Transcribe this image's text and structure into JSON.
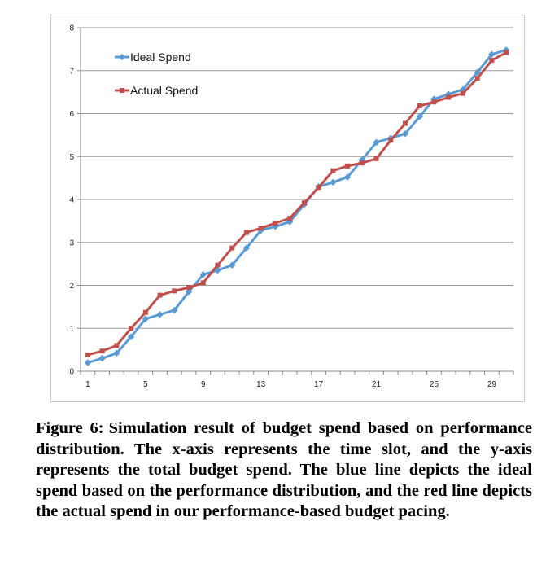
{
  "chart_data": {
    "type": "line",
    "x": [
      1,
      2,
      3,
      4,
      5,
      6,
      7,
      8,
      9,
      10,
      11,
      12,
      13,
      14,
      15,
      16,
      17,
      18,
      19,
      20,
      21,
      22,
      23,
      24,
      25,
      26,
      27,
      28,
      29,
      30
    ],
    "x_ticks": [
      1,
      5,
      9,
      13,
      17,
      21,
      25,
      29
    ],
    "ylim": [
      0,
      8
    ],
    "y_ticks": [
      0,
      1,
      2,
      3,
      4,
      5,
      6,
      7,
      8
    ],
    "grid": "horizontal",
    "legend_position": "top-left",
    "series": [
      {
        "name": "Ideal Spend",
        "color": "#5b9bd5",
        "marker": "diamond",
        "values": [
          0.2,
          0.3,
          0.42,
          0.8,
          1.22,
          1.32,
          1.42,
          1.85,
          2.25,
          2.35,
          2.47,
          2.87,
          3.28,
          3.37,
          3.48,
          3.88,
          4.3,
          4.4,
          4.52,
          4.92,
          5.33,
          5.43,
          5.53,
          5.93,
          6.34,
          6.45,
          6.56,
          6.96,
          7.38,
          7.48
        ]
      },
      {
        "name": "Actual Spend",
        "color": "#c0504d",
        "marker": "square",
        "values": [
          0.38,
          0.47,
          0.6,
          1.0,
          1.37,
          1.77,
          1.87,
          1.95,
          2.06,
          2.47,
          2.87,
          3.23,
          3.33,
          3.45,
          3.56,
          3.92,
          4.28,
          4.67,
          4.78,
          4.85,
          4.95,
          5.38,
          5.77,
          6.18,
          6.27,
          6.38,
          6.47,
          6.82,
          7.24,
          7.42
        ]
      }
    ]
  },
  "caption": {
    "label": "Figure 6:",
    "text": "Simulation result of budget spend based on performance distribution. The x-axis represents the time slot, and the y-axis represents the total budget spend. The blue line depicts the ideal spend based on the performance distribution, and the red line depicts the actual spend in our performance-based budget pacing."
  }
}
